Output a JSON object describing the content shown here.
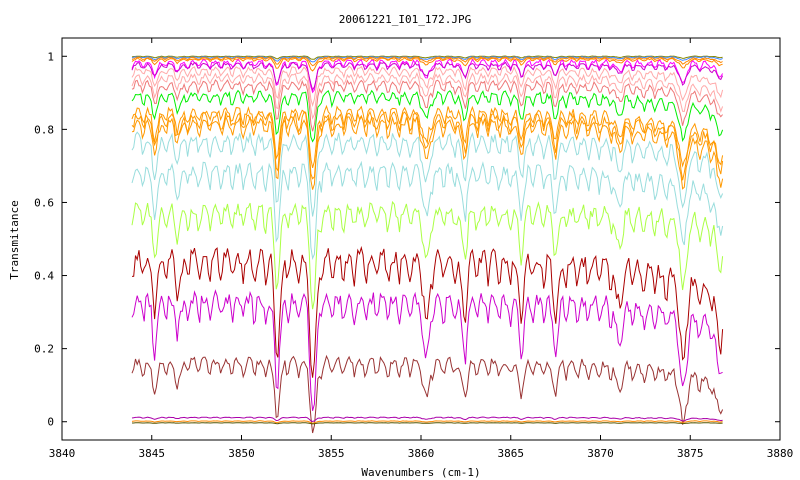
{
  "chart_data": {
    "type": "line",
    "title": "20061221_I01_172.JPG",
    "xlabel": "Wavenumbers (cm-1)",
    "ylabel": "Transmitance",
    "xlim": [
      3840,
      3880
    ],
    "ylim": [
      -0.05,
      1.05
    ],
    "x_ticks": [
      3840,
      3845,
      3850,
      3855,
      3860,
      3865,
      3870,
      3875,
      3880
    ],
    "y_ticks": [
      0,
      0.2,
      0.4,
      0.6,
      0.8,
      1
    ],
    "x_start": 3843.9,
    "x_end": 3876.8,
    "grid": false,
    "legend": "none",
    "absorption_lines": [
      {
        "x": 3845.2,
        "w": 1.0
      },
      {
        "x": 3846.5,
        "w": 0.6
      },
      {
        "x": 3852.0,
        "w": 2.0
      },
      {
        "x": 3854.0,
        "w": 3.0
      },
      {
        "x": 3860.3,
        "w": 1.6
      },
      {
        "x": 3862.4,
        "w": 1.2
      },
      {
        "x": 3865.6,
        "w": 1.0
      },
      {
        "x": 3867.5,
        "w": 1.0
      },
      {
        "x": 3871.0,
        "w": 0.9
      },
      {
        "x": 3874.6,
        "w": 2.2
      },
      {
        "x": 3876.6,
        "w": 1.2
      }
    ],
    "series": [
      {
        "color": "#888800",
        "level": 1.0,
        "depth": 0.003,
        "end_drop": 0.0
      },
      {
        "color": "#4488ff",
        "level": 0.998,
        "depth": 0.005,
        "end_drop": 0.0
      },
      {
        "color": "#ff8800",
        "level": 0.996,
        "depth": 0.008,
        "end_drop": 0.002
      },
      {
        "color": "#ff8800",
        "level": 0.993,
        "depth": 0.012,
        "end_drop": 0.003
      },
      {
        "color": "#ff00ff",
        "level": 0.985,
        "depth": 0.03,
        "end_drop": 0.005
      },
      {
        "color": "#cc00cc",
        "level": 0.978,
        "depth": 0.025,
        "end_drop": 0.01
      },
      {
        "color": "#ffaaaa",
        "level": 0.965,
        "depth": 0.035,
        "end_drop": 0.03
      },
      {
        "color": "#ffaaaa",
        "level": 0.945,
        "depth": 0.04,
        "end_drop": 0.04
      },
      {
        "color": "#ee7777",
        "level": 0.925,
        "depth": 0.045,
        "end_drop": 0.04
      },
      {
        "color": "#00ee00",
        "level": 0.895,
        "depth": 0.05,
        "end_drop": 0.05
      },
      {
        "color": "#ff9900",
        "level": 0.85,
        "depth": 0.06,
        "end_drop": 0.07
      },
      {
        "color": "#ff9900",
        "level": 0.835,
        "depth": 0.065,
        "end_drop": 0.07
      },
      {
        "color": "#ff9900",
        "level": 0.82,
        "depth": 0.07,
        "end_drop": 0.08
      },
      {
        "color": "#99dddd",
        "level": 0.775,
        "depth": 0.08,
        "end_drop": 0.07
      },
      {
        "color": "#99dddd",
        "level": 0.69,
        "depth": 0.09,
        "end_drop": 0.07
      },
      {
        "color": "#aaff44",
        "level": 0.58,
        "depth": 0.1,
        "end_drop": 0.04
      },
      {
        "color": "#aa0000",
        "level": 0.45,
        "depth": 0.12,
        "end_drop": 0.1
      },
      {
        "color": "#cc00cc",
        "level": 0.335,
        "depth": 0.11,
        "end_drop": 0.08
      },
      {
        "color": "#993333",
        "level": 0.165,
        "depth": 0.07,
        "end_drop": 0.06
      },
      {
        "color": "#aa00aa",
        "level": 0.012,
        "depth": 0.004,
        "end_drop": 0.004
      },
      {
        "color": "#ff8800",
        "level": 0.002,
        "depth": 0.002,
        "end_drop": 0.0
      },
      {
        "color": "#555500",
        "level": -0.003,
        "depth": 0.001,
        "end_drop": 0.0
      }
    ]
  }
}
